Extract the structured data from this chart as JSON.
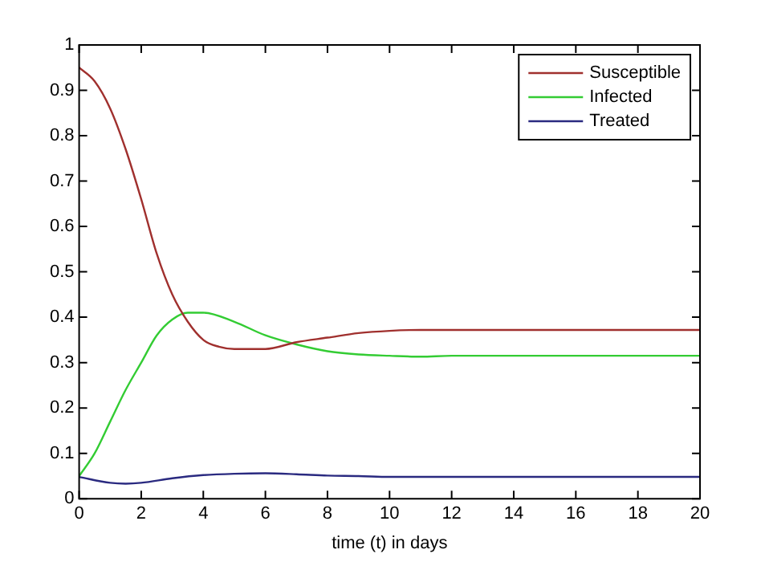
{
  "chart_data": {
    "type": "line",
    "xlabel": "time (t) in days",
    "xlim": [
      0,
      20
    ],
    "xticks": [
      0,
      2,
      4,
      6,
      8,
      10,
      12,
      14,
      16,
      18,
      20
    ],
    "ylim": [
      0,
      1
    ],
    "yticks": [
      0,
      0.1,
      0.2,
      0.3,
      0.4,
      0.5,
      0.6,
      0.7,
      0.8,
      0.9,
      1
    ],
    "grid": false,
    "legend": "top right",
    "line_style": "solid",
    "marker": "none",
    "series": [
      {
        "name": "Susceptible",
        "color": "#a0302e",
        "x": [
          0,
          0.5,
          1,
          1.5,
          2,
          2.5,
          3,
          3.5,
          4,
          4.5,
          5,
          6,
          7,
          8,
          9,
          10,
          11,
          12,
          14,
          16,
          18,
          20
        ],
        "values": [
          0.95,
          0.92,
          0.86,
          0.77,
          0.66,
          0.54,
          0.45,
          0.39,
          0.35,
          0.335,
          0.33,
          0.33,
          0.345,
          0.355,
          0.365,
          0.37,
          0.372,
          0.372,
          0.372,
          0.372,
          0.372,
          0.372
        ]
      },
      {
        "name": "Infected",
        "color": "#33cc33",
        "x": [
          0,
          0.5,
          1,
          1.5,
          2,
          2.5,
          3,
          3.5,
          4,
          5,
          6,
          7,
          8,
          9,
          10,
          11,
          12,
          14,
          16,
          18,
          20
        ],
        "values": [
          0.05,
          0.1,
          0.17,
          0.24,
          0.3,
          0.36,
          0.395,
          0.41,
          0.41,
          0.39,
          0.36,
          0.34,
          0.325,
          0.318,
          0.315,
          0.313,
          0.315,
          0.315,
          0.315,
          0.315,
          0.315
        ]
      },
      {
        "name": "Treated",
        "color": "#2a2a80",
        "x": [
          0,
          1,
          1.5,
          2,
          3,
          4,
          5,
          6,
          7,
          8,
          9,
          10,
          12,
          14,
          16,
          18,
          20
        ],
        "values": [
          0.048,
          0.035,
          0.033,
          0.035,
          0.045,
          0.052,
          0.055,
          0.056,
          0.054,
          0.051,
          0.05,
          0.048,
          0.048,
          0.048,
          0.048,
          0.048,
          0.048
        ]
      }
    ]
  }
}
